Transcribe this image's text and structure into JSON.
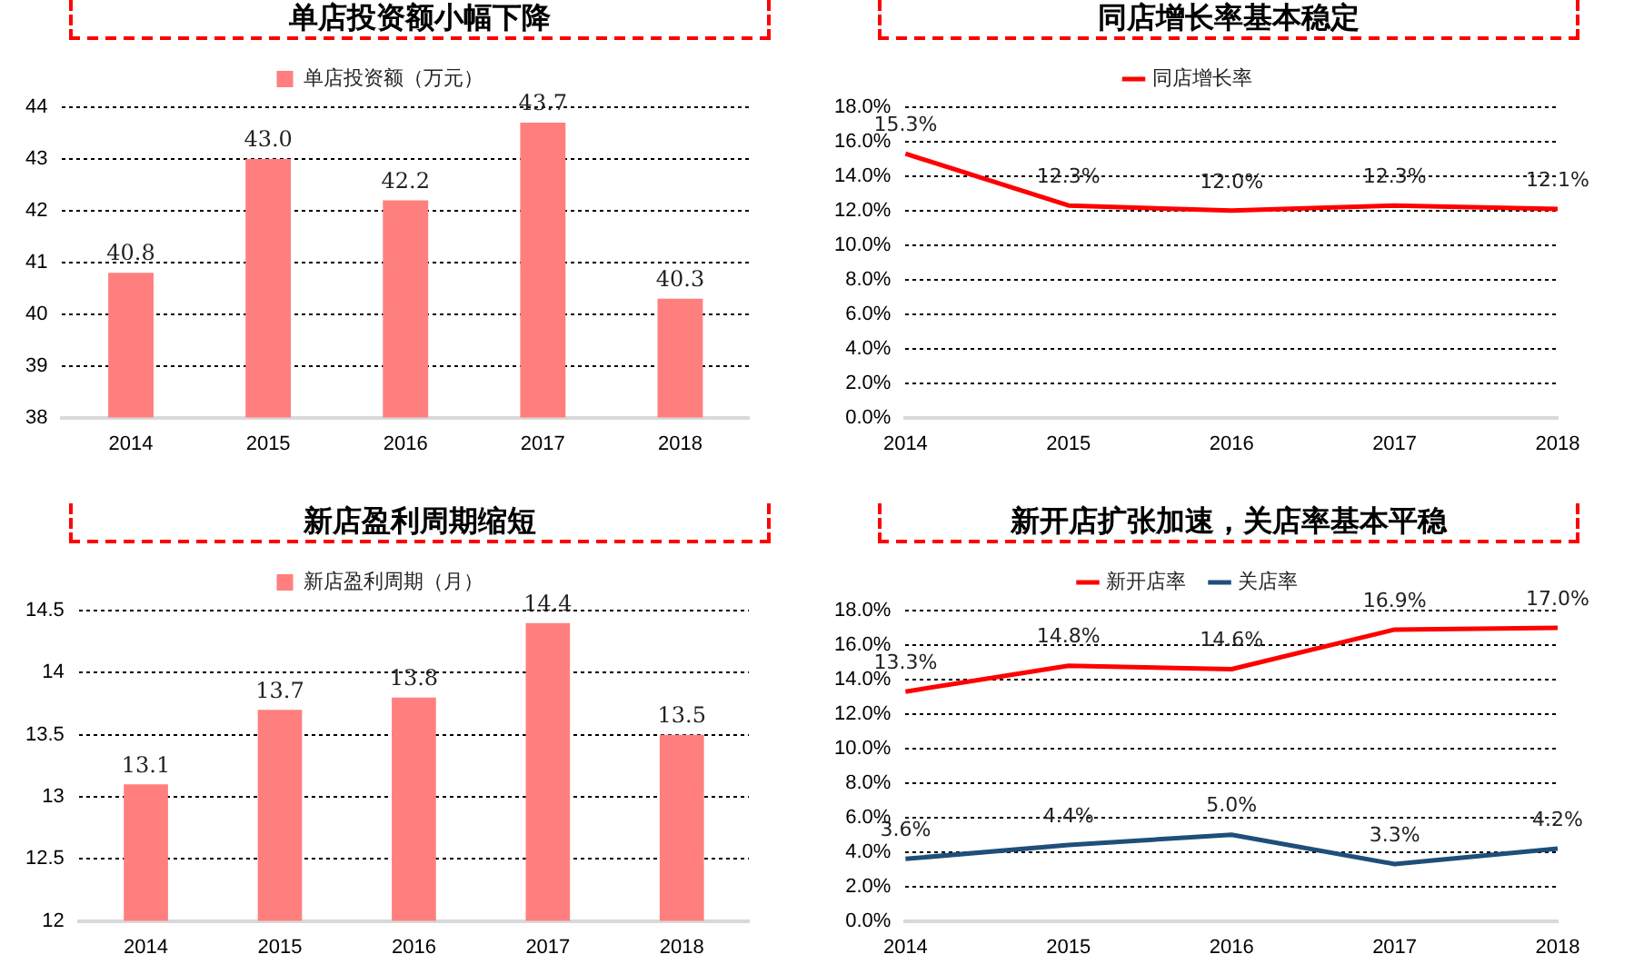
{
  "chart_data": [
    {
      "type": "bar",
      "title": "单店投资额小幅下降",
      "categories": [
        "2014",
        "2015",
        "2016",
        "2017",
        "2018"
      ],
      "series": [
        {
          "name": "单店投资额（万元）",
          "color": "#ff7f7f",
          "values": [
            40.8,
            43.0,
            42.2,
            43.7,
            40.3
          ],
          "value_labels": [
            "40.8",
            "43.0",
            "42.2",
            "43.7",
            "40.3"
          ]
        }
      ],
      "ylim": [
        38,
        44
      ],
      "yticks": [
        38,
        39,
        40,
        41,
        42,
        43,
        44
      ],
      "grid": "y",
      "legend": "top"
    },
    {
      "type": "line",
      "title": "同店增长率基本稳定",
      "categories": [
        "2014",
        "2015",
        "2016",
        "2017",
        "2018"
      ],
      "series": [
        {
          "name": "同店增长率",
          "color": "#ff0000",
          "values": [
            15.3,
            12.3,
            12.0,
            12.3,
            12.1
          ],
          "value_labels": [
            "15.3%",
            "12.3%",
            "12.0%",
            "12.3%",
            "12.1%"
          ]
        }
      ],
      "ylim": [
        0,
        18
      ],
      "yticks": [
        {
          "value": 0,
          "label": "0.0%"
        },
        {
          "value": 2,
          "label": "2.0%"
        },
        {
          "value": 4,
          "label": "4.0%"
        },
        {
          "value": 6,
          "label": "6.0%"
        },
        {
          "value": 8,
          "label": "8.0%"
        },
        {
          "value": 10,
          "label": "10.0%"
        },
        {
          "value": 12,
          "label": "12.0%"
        },
        {
          "value": 14,
          "label": "14.0%"
        },
        {
          "value": 16,
          "label": "16.0%"
        },
        {
          "value": 18,
          "label": "18.0%"
        }
      ],
      "grid": "y",
      "legend": "top",
      "marker": "none"
    },
    {
      "type": "bar",
      "title": "新店盈利周期缩短",
      "categories": [
        "2014",
        "2015",
        "2016",
        "2017",
        "2018"
      ],
      "series": [
        {
          "name": "新店盈利周期（月）",
          "color": "#ff7f7f",
          "values": [
            13.1,
            13.7,
            13.8,
            14.4,
            13.5
          ],
          "value_labels": [
            "13.1",
            "13.7",
            "13.8",
            "14.4",
            "13.5"
          ]
        }
      ],
      "ylim": [
        12,
        14.5
      ],
      "yticks": [
        12,
        12.5,
        13,
        13.5,
        14,
        14.5
      ],
      "grid": "y",
      "legend": "top"
    },
    {
      "type": "line",
      "title": "新开店扩张加速，关店率基本平稳",
      "categories": [
        "2014",
        "2015",
        "2016",
        "2017",
        "2018"
      ],
      "series": [
        {
          "name": "新开店率",
          "color": "#ff0000",
          "values": [
            13.3,
            14.8,
            14.6,
            16.9,
            17.0
          ],
          "value_labels": [
            "13.3%",
            "14.8%",
            "14.6%",
            "16.9%",
            "17.0%"
          ]
        },
        {
          "name": "关店率",
          "color": "#1f4e79",
          "values": [
            3.6,
            4.4,
            5.0,
            3.3,
            4.2
          ],
          "value_labels": [
            "3.6%",
            "4.4%",
            "5.0%",
            "3.3%",
            "4.2%"
          ]
        }
      ],
      "ylim": [
        0,
        18
      ],
      "yticks": [
        {
          "value": 0,
          "label": "0.0%"
        },
        {
          "value": 2,
          "label": "2.0%"
        },
        {
          "value": 4,
          "label": "4.0%"
        },
        {
          "value": 6,
          "label": "6.0%"
        },
        {
          "value": 8,
          "label": "8.0%"
        },
        {
          "value": 10,
          "label": "10.0%"
        },
        {
          "value": 12,
          "label": "12.0%"
        },
        {
          "value": 14,
          "label": "14.0%"
        },
        {
          "value": 16,
          "label": "16.0%"
        },
        {
          "value": 18,
          "label": "18.0%"
        }
      ],
      "grid": "y",
      "legend": "top",
      "marker": "none"
    }
  ]
}
